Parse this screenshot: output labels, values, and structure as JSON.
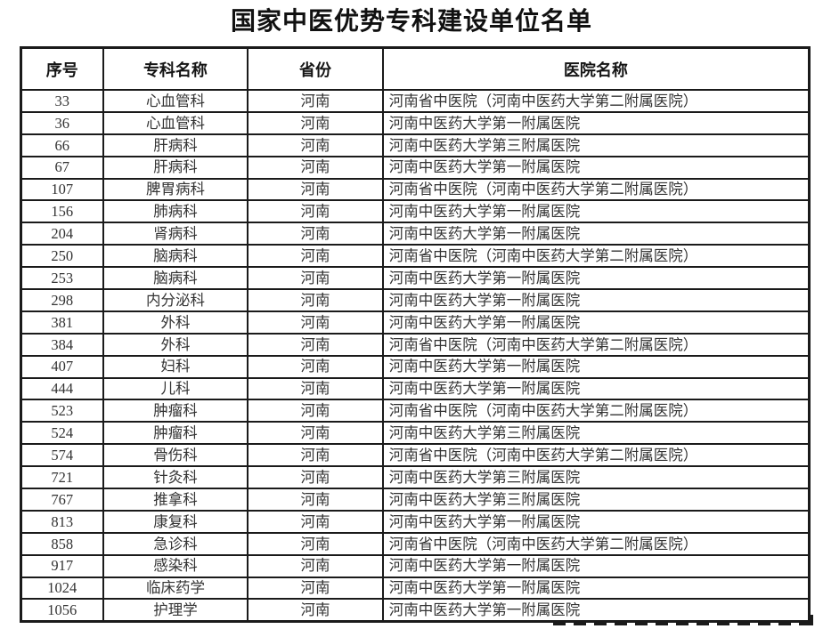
{
  "page": {
    "title": "国家中医优势专科建设单位名单"
  },
  "colors": {
    "border": "#1a1a1a",
    "title_text": "#111111",
    "cell_text": "#333333",
    "background": "#ffffff"
  },
  "table": {
    "headers": [
      "序号",
      "专科名称",
      "省份",
      "医院名称"
    ],
    "rows": [
      [
        "33",
        "心血管科",
        "河南",
        "河南省中医院（河南中医药大学第二附属医院）"
      ],
      [
        "36",
        "心血管科",
        "河南",
        "河南中医药大学第一附属医院"
      ],
      [
        "66",
        "肝病科",
        "河南",
        "河南中医药大学第三附属医院"
      ],
      [
        "67",
        "肝病科",
        "河南",
        "河南中医药大学第一附属医院"
      ],
      [
        "107",
        "脾胃病科",
        "河南",
        "河南省中医院（河南中医药大学第二附属医院）"
      ],
      [
        "156",
        "肺病科",
        "河南",
        "河南中医药大学第一附属医院"
      ],
      [
        "204",
        "肾病科",
        "河南",
        "河南中医药大学第一附属医院"
      ],
      [
        "250",
        "脑病科",
        "河南",
        "河南省中医院（河南中医药大学第二附属医院）"
      ],
      [
        "253",
        "脑病科",
        "河南",
        "河南中医药大学第一附属医院"
      ],
      [
        "298",
        "内分泌科",
        "河南",
        "河南中医药大学第一附属医院"
      ],
      [
        "381",
        "外科",
        "河南",
        "河南中医药大学第一附属医院"
      ],
      [
        "384",
        "外科",
        "河南",
        "河南省中医院（河南中医药大学第二附属医院）"
      ],
      [
        "407",
        "妇科",
        "河南",
        "河南中医药大学第一附属医院"
      ],
      [
        "444",
        "儿科",
        "河南",
        "河南中医药大学第一附属医院"
      ],
      [
        "523",
        "肿瘤科",
        "河南",
        "河南省中医院（河南中医药大学第二附属医院）"
      ],
      [
        "524",
        "肿瘤科",
        "河南",
        "河南中医药大学第三附属医院"
      ],
      [
        "574",
        "骨伤科",
        "河南",
        "河南省中医院（河南中医药大学第二附属医院）"
      ],
      [
        "721",
        "针灸科",
        "河南",
        "河南中医药大学第三附属医院"
      ],
      [
        "767",
        "推拿科",
        "河南",
        "河南中医药大学第三附属医院"
      ],
      [
        "813",
        "康复科",
        "河南",
        "河南中医药大学第一附属医院"
      ],
      [
        "858",
        "急诊科",
        "河南",
        "河南省中医院（河南中医药大学第二附属医院）"
      ],
      [
        "917",
        "感染科",
        "河南",
        "河南中医药大学第一附属医院"
      ],
      [
        "1024",
        "临床药学",
        "河南",
        "河南中医药大学第一附属医院"
      ],
      [
        "1056",
        "护理学",
        "河南",
        "河南中医药大学第一附属医院"
      ]
    ],
    "cell_names": [
      "serial-cell",
      "specialty-cell",
      "province-cell",
      "hospital-cell"
    ]
  }
}
